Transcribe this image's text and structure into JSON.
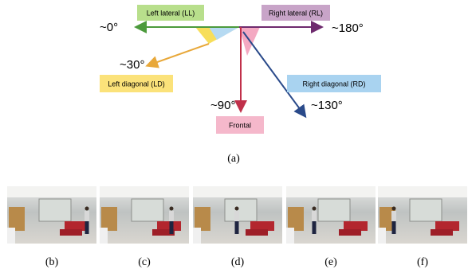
{
  "diagram": {
    "left_lateral": {
      "label": "Left lateral (LL)",
      "angle": "~0°"
    },
    "right_lateral": {
      "label": "Right lateral (RL)",
      "angle": "~180°"
    },
    "left_diagonal": {
      "label": "Left diagonal (LD)",
      "angle": "~30°"
    },
    "frontal": {
      "label": "Frontal",
      "angle": "~90°"
    },
    "right_diagonal": {
      "label": "Right diagonal (RD)",
      "angle": "~130°"
    },
    "caption": "(a)"
  },
  "photos": [
    {
      "caption": "(b)"
    },
    {
      "caption": "(c)"
    },
    {
      "caption": "(d)"
    },
    {
      "caption": "(e)"
    },
    {
      "caption": "(f)"
    }
  ]
}
